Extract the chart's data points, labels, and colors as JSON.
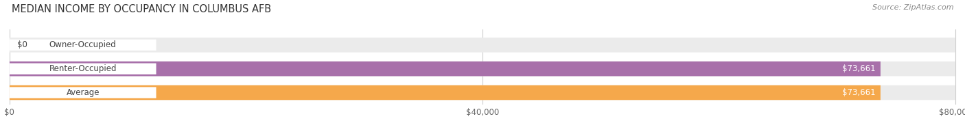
{
  "title": "MEDIAN INCOME BY OCCUPANCY IN COLUMBUS AFB",
  "source": "Source: ZipAtlas.com",
  "categories": [
    "Owner-Occupied",
    "Renter-Occupied",
    "Average"
  ],
  "values": [
    0,
    73661,
    73661
  ],
  "bar_colors": [
    "#5ecfcf",
    "#a870aa",
    "#f5a84b"
  ],
  "value_labels": [
    "$0",
    "$73,661",
    "$73,661"
  ],
  "x_max": 80000,
  "x_ticks": [
    0,
    40000,
    80000
  ],
  "x_tick_labels": [
    "$0",
    "$40,000",
    "$80,000"
  ],
  "title_fontsize": 10.5,
  "label_fontsize": 8.5,
  "tick_fontsize": 8.5,
  "source_fontsize": 8,
  "bar_height": 0.62,
  "fig_width": 14.06,
  "fig_height": 1.96,
  "bg_color": "#ffffff",
  "bar_bg_color": "#ebebeb",
  "pill_bg_color": "#ffffff",
  "text_color": "#444444",
  "grid_color": "#cccccc"
}
